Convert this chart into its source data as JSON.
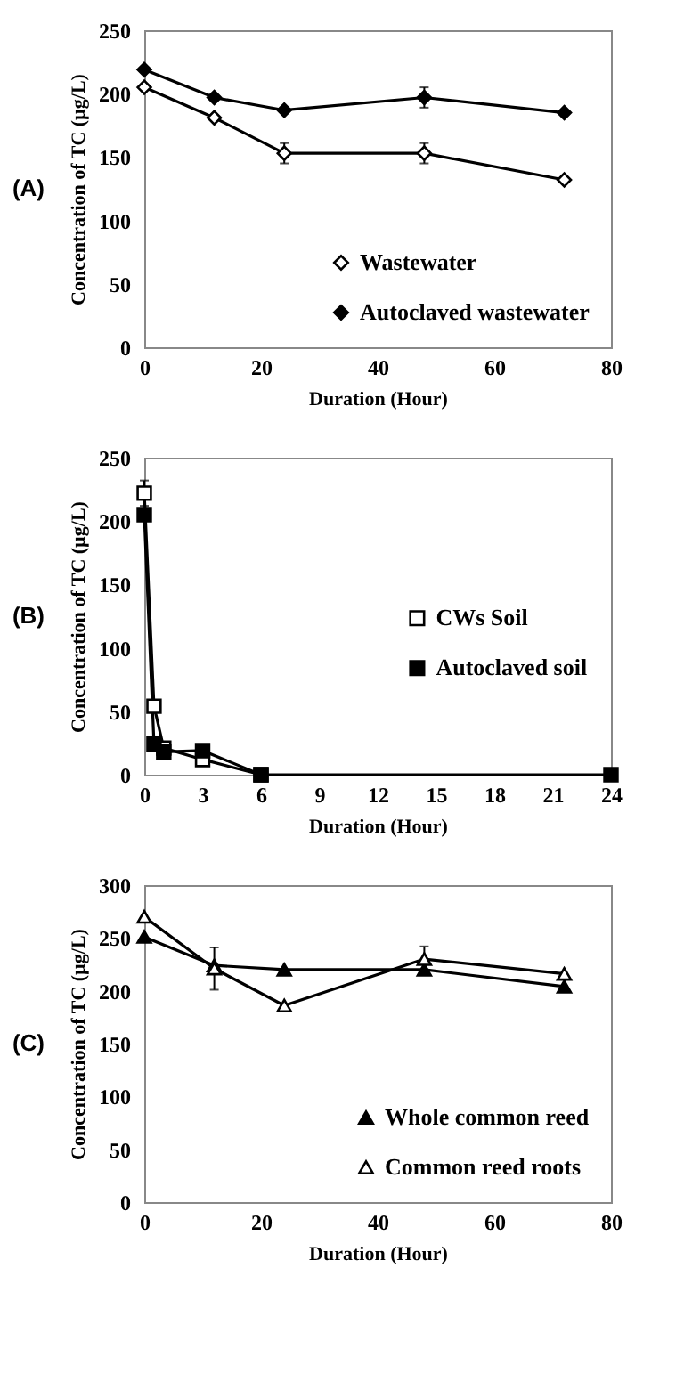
{
  "chart_data": [
    {
      "type": "line",
      "title": "(A)",
      "xlabel": "Duration (Hour)",
      "ylabel": "Concentration of TC (µg/L)",
      "xlim": [
        0,
        80
      ],
      "xticks": [
        0,
        20,
        40,
        60,
        80
      ],
      "ylim": [
        0,
        250
      ],
      "yticks": [
        0,
        50,
        100,
        150,
        200,
        250
      ],
      "x": [
        0,
        12,
        24,
        48,
        72
      ],
      "legend": "bottom right",
      "series": [
        {
          "name": "Wastewater",
          "color": "#ffffff",
          "marker": "diamond",
          "values": [
            205,
            181,
            153,
            153,
            132
          ],
          "errors": [
            null,
            null,
            8,
            8,
            null
          ]
        },
        {
          "name": "Autoclaved wastewater",
          "color": "#000000",
          "marker": "diamond",
          "values": [
            219,
            197,
            187,
            197,
            185
          ],
          "errors": [
            null,
            null,
            null,
            8,
            null
          ]
        }
      ]
    },
    {
      "type": "line",
      "title": "(B)",
      "xlabel": "Duration (Hour)",
      "ylabel": "Concentration of TC (µg/L)",
      "xlim": [
        0,
        24
      ],
      "xticks": [
        0,
        3,
        6,
        9,
        12,
        15,
        18,
        21,
        24
      ],
      "ylim": [
        0,
        250
      ],
      "yticks": [
        0,
        50,
        100,
        150,
        200,
        250
      ],
      "legend": "right",
      "series": [
        {
          "name": "CWs Soil",
          "color": "#ffffff",
          "marker": "square",
          "x": [
            0,
            0.5,
            1,
            3,
            6
          ],
          "values": [
            222,
            54,
            21,
            12,
            0
          ],
          "errors": [
            10,
            null,
            null,
            null,
            null
          ]
        },
        {
          "name": "Autoclaved soil",
          "color": "#000000",
          "marker": "square",
          "x": [
            0,
            0.5,
            1,
            3,
            6,
            24
          ],
          "values": [
            205,
            24,
            18,
            19,
            0,
            0
          ]
        }
      ]
    },
    {
      "type": "line",
      "title": "(C)",
      "xlabel": "Duration (Hour)",
      "ylabel": "Concentration of TC (µg/L)",
      "xlim": [
        0,
        80
      ],
      "xticks": [
        0,
        20,
        40,
        60,
        80
      ],
      "ylim": [
        0,
        300
      ],
      "yticks": [
        0,
        50,
        100,
        150,
        200,
        250,
        300
      ],
      "x": [
        0,
        12,
        24,
        48,
        72
      ],
      "legend": "bottom right",
      "series": [
        {
          "name": "Whole common reed",
          "color": "#000000",
          "marker": "triangle",
          "values": [
            251,
            224,
            220,
            220,
            204
          ]
        },
        {
          "name": "Common reed roots",
          "color": "#ffffff",
          "marker": "triangle",
          "values": [
            270,
            221,
            186,
            230,
            216
          ],
          "errors": [
            null,
            20,
            null,
            12,
            null
          ]
        }
      ]
    }
  ]
}
